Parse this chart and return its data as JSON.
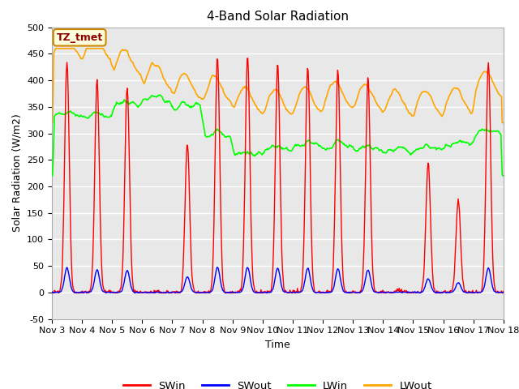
{
  "title": "4-Band Solar Radiation",
  "xlabel": "Time",
  "ylabel": "Solar Radiation (W/m2)",
  "ylim": [
    -50,
    500
  ],
  "yticks": [
    -50,
    0,
    50,
    100,
    150,
    200,
    250,
    300,
    350,
    400,
    450,
    500
  ],
  "legend_labels": [
    "SWin",
    "SWout",
    "LWin",
    "LWout"
  ],
  "legend_colors": [
    "red",
    "blue",
    "green",
    "orange"
  ],
  "annotation_text": "TZ_tmet",
  "annotation_bg": "#ffffdd",
  "annotation_border": "#cc8800",
  "bg_color": "#e8e8e8",
  "grid_color": "white",
  "title_fontsize": 11,
  "axis_fontsize": 9,
  "tick_fontsize": 8,
  "n_days": 15,
  "start_day": 3,
  "end_day": 18
}
